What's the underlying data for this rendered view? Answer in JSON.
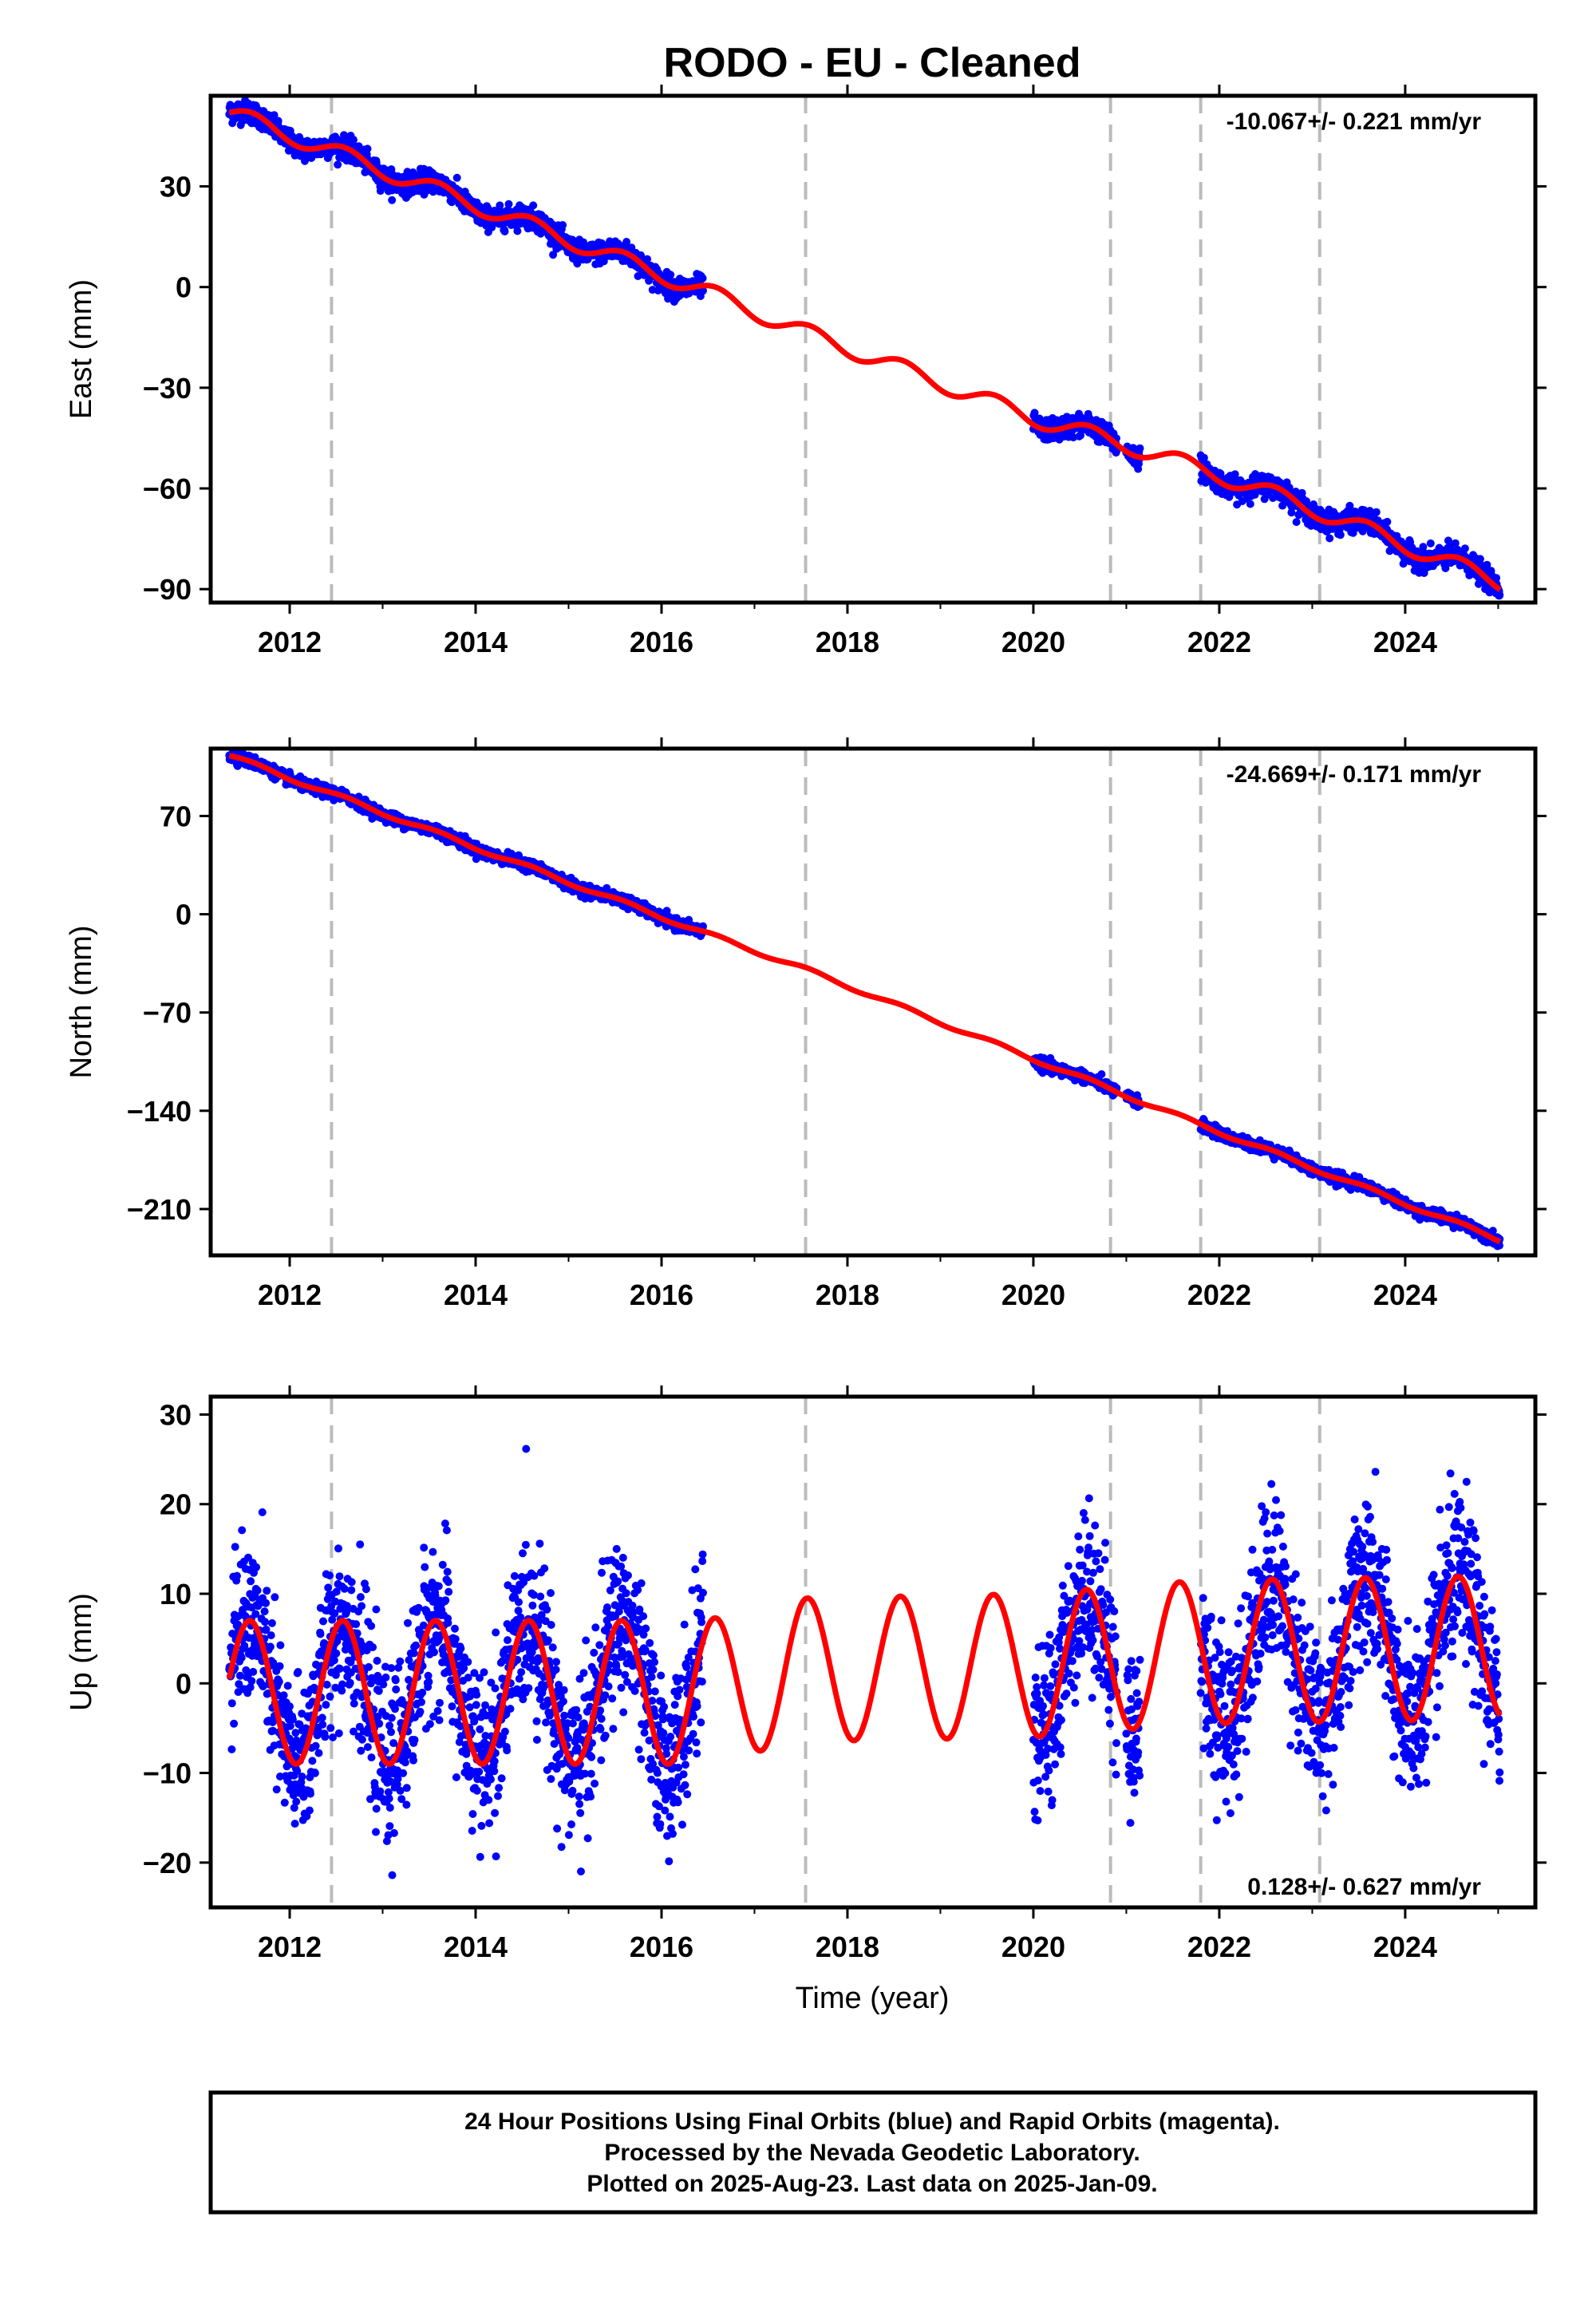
{
  "title": "RODO  - EU - Cleaned",
  "xlabel": "Time (year)",
  "footer": {
    "lines": [
      "24 Hour Positions Using Final Orbits (blue) and Rapid Orbits (magenta).",
      "Processed by the Nevada Geodetic Laboratory.",
      "Plotted on 2025-Aug-23. Last data on 2025-Jan-09."
    ]
  },
  "colors": {
    "points": "#0000ff",
    "model": "#ff0000",
    "events": "#bbbbbb",
    "frame": "#000000"
  },
  "chart_data": [
    {
      "type": "scatter",
      "component": "east",
      "ylabel": "East (mm)",
      "xlim": [
        2011.15,
        2025.4
      ],
      "ylim": [
        -94,
        57
      ],
      "xticks": [
        2012,
        2014,
        2016,
        2018,
        2020,
        2022,
        2024
      ],
      "yticks": [
        30,
        0,
        -30,
        -60,
        -90
      ],
      "ytick_labels": [
        "30",
        "0",
        "−30",
        "−60",
        "−90"
      ],
      "rate_text": "-10.067+/- 0.221 mm/yr",
      "rate_position": "top-right",
      "event_lines": [
        2012.45,
        2017.55,
        2020.83,
        2021.8,
        2023.08
      ],
      "data_ranges": [
        [
          2011.35,
          2016.45
        ],
        [
          2020.0,
          2020.9
        ],
        [
          2021.0,
          2021.15
        ],
        [
          2021.8,
          2025.02
        ]
      ],
      "model": {
        "trend_points": [
          [
            2011.35,
            52
          ],
          [
            2016.45,
            -1
          ],
          [
            2017.5,
            -13
          ],
          [
            2020.0,
            -39
          ],
          [
            2021.0,
            -47
          ],
          [
            2022.0,
            -56
          ],
          [
            2023.0,
            -66
          ],
          [
            2025.02,
            -88
          ]
        ],
        "annual_amplitude": 2.5,
        "annual_phase_year": 0.35
      },
      "scatter_sigma": 1.6
    },
    {
      "type": "scatter",
      "component": "north",
      "ylabel": "North (mm)",
      "xlim": [
        2011.15,
        2025.4
      ],
      "ylim": [
        -243,
        118
      ],
      "xticks": [
        2012,
        2014,
        2016,
        2018,
        2020,
        2022,
        2024
      ],
      "yticks": [
        70,
        0,
        -70,
        -140,
        -210
      ],
      "ytick_labels": [
        "70",
        "0",
        "−70",
        "−140",
        "−210"
      ],
      "rate_text": "-24.669+/- 0.171 mm/yr",
      "rate_position": "top-right",
      "event_lines": [
        2012.45,
        2017.55,
        2020.83,
        2021.8,
        2023.08
      ],
      "data_ranges": [
        [
          2011.35,
          2016.45
        ],
        [
          2020.0,
          2020.9
        ],
        [
          2021.0,
          2021.15
        ],
        [
          2021.8,
          2025.02
        ]
      ],
      "model": {
        "trend_points": [
          [
            2011.35,
            113
          ],
          [
            2016.45,
            -13
          ],
          [
            2017.5,
            -38
          ],
          [
            2020.0,
            -103
          ],
          [
            2021.8,
            -150
          ],
          [
            2025.02,
            -232
          ]
        ],
        "annual_amplitude": 1.5,
        "annual_phase_year": 0.35
      },
      "scatter_sigma": 2.0
    },
    {
      "type": "scatter",
      "component": "up",
      "ylabel": "Up (mm)",
      "xlim": [
        2011.15,
        2025.4
      ],
      "ylim": [
        -25,
        32
      ],
      "xticks": [
        2012,
        2014,
        2016,
        2018,
        2020,
        2022,
        2024
      ],
      "yticks": [
        30,
        20,
        10,
        0,
        -10,
        -20
      ],
      "ytick_labels": [
        "30",
        "20",
        "10",
        "0",
        "−10",
        "−20"
      ],
      "rate_text": "0.128+/- 0.627 mm/yr",
      "rate_position": "bottom-right",
      "event_lines": [
        2012.45,
        2017.55,
        2020.83,
        2021.8,
        2023.08
      ],
      "data_ranges": [
        [
          2011.35,
          2016.45
        ],
        [
          2020.0,
          2020.9
        ],
        [
          2021.0,
          2021.15
        ],
        [
          2021.8,
          2025.02
        ]
      ],
      "model": {
        "trend_points": [
          [
            2011.35,
            -1
          ],
          [
            2016.45,
            -1
          ],
          [
            2017.5,
            1.5
          ],
          [
            2020.0,
            2
          ],
          [
            2021.8,
            3.5
          ],
          [
            2025.02,
            4
          ]
        ],
        "annual_amplitude": 8,
        "annual_phase_year": 0.32
      },
      "scatter_sigma": 4.5
    }
  ]
}
